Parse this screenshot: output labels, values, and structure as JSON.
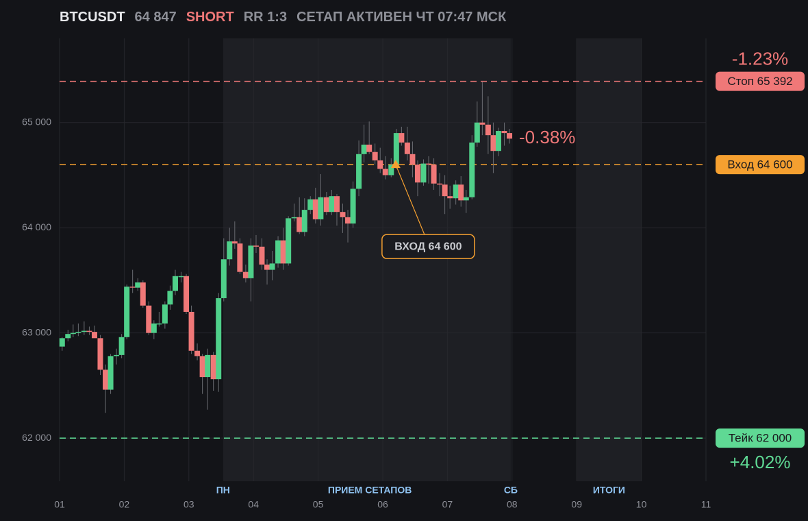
{
  "header": {
    "symbol": "BTCUSDT",
    "side": "SHORT",
    "rr": "RR 1:3",
    "status": "СЕТАП АКТИВЕН ЧТ 07:47 МСК"
  },
  "chart_data": {
    "type": "candlestick",
    "up_color": "#4fd08a",
    "down_color": "#f07878",
    "grid": true,
    "xlim": [
      1,
      11
    ],
    "xticks": [
      {
        "value": 1,
        "label": "01"
      },
      {
        "value": 2,
        "label": "02"
      },
      {
        "value": 3,
        "label": "03"
      },
      {
        "value": 4,
        "label": "04"
      },
      {
        "value": 5,
        "label": "05"
      },
      {
        "value": 6,
        "label": "06"
      },
      {
        "value": 7,
        "label": "07"
      },
      {
        "value": 8,
        "label": "08"
      },
      {
        "value": 9,
        "label": "09"
      },
      {
        "value": 10,
        "label": "10"
      },
      {
        "value": 11,
        "label": "11"
      }
    ],
    "ylim": [
      61590,
      65800
    ],
    "yticks": [
      {
        "value": 62000,
        "label": "62 000"
      },
      {
        "value": 63000,
        "label": "63 000"
      },
      {
        "value": 64000,
        "label": "64 000"
      },
      {
        "value": 65000,
        "label": "65 000"
      }
    ],
    "zones": [
      {
        "from": 3.53,
        "to": 7.98
      },
      {
        "from": 9,
        "to": 10
      }
    ],
    "zone_labels": [
      {
        "label": "ПН",
        "x": 3.53
      },
      {
        "label": "ПРИЕМ СЕТАПОВ",
        "x": 5.8
      },
      {
        "label": "СБ",
        "x": 7.98
      },
      {
        "label": "ИТОГИ",
        "x": 9.5
      }
    ],
    "x": [
      1.04,
      1.13,
      1.21,
      1.29,
      1.38,
      1.46,
      1.54,
      1.63,
      1.71,
      1.79,
      1.88,
      1.96,
      2.04,
      2.13,
      2.21,
      2.29,
      2.38,
      2.46,
      2.54,
      2.63,
      2.71,
      2.79,
      2.88,
      2.96,
      3.04,
      3.13,
      3.21,
      3.29,
      3.38,
      3.46,
      3.54,
      3.63,
      3.71,
      3.79,
      3.88,
      3.96,
      4.04,
      4.13,
      4.21,
      4.29,
      4.38,
      4.46,
      4.54,
      4.63,
      4.71,
      4.79,
      4.88,
      4.96,
      5.04,
      5.13,
      5.21,
      5.29,
      5.38,
      5.46,
      5.54,
      5.63,
      5.71,
      5.79,
      5.88,
      5.96,
      6.04,
      6.13,
      6.21,
      6.29,
      6.38,
      6.46,
      6.54,
      6.63,
      6.71,
      6.79,
      6.88,
      6.96,
      7.04,
      7.13,
      7.21,
      7.29,
      7.38,
      7.46,
      7.54,
      7.63,
      7.71,
      7.79,
      7.88,
      7.96
    ],
    "ohlc": [
      [
        62870,
        62960,
        62830,
        62950
      ],
      [
        62950,
        63030,
        62920,
        62990
      ],
      [
        62990,
        63080,
        62960,
        63000
      ],
      [
        63000,
        63090,
        62970,
        63010
      ],
      [
        63010,
        63110,
        62980,
        63020
      ],
      [
        63020,
        63060,
        62980,
        63010
      ],
      [
        63010,
        63070,
        62990,
        62950
      ],
      [
        62950,
        62980,
        62600,
        62650
      ],
      [
        62650,
        62700,
        62240,
        62460
      ],
      [
        62460,
        62800,
        62420,
        62780
      ],
      [
        62780,
        62850,
        62700,
        62790
      ],
      [
        62790,
        62990,
        62760,
        62960
      ],
      [
        62960,
        63460,
        62940,
        63440
      ],
      [
        63440,
        63600,
        63380,
        63430
      ],
      [
        63430,
        63520,
        63400,
        63480
      ],
      [
        63480,
        63500,
        63240,
        63260
      ],
      [
        63260,
        63300,
        62980,
        63000
      ],
      [
        63000,
        63120,
        62940,
        63090
      ],
      [
        63090,
        63200,
        63060,
        63090
      ],
      [
        63090,
        63300,
        63040,
        63270
      ],
      [
        63270,
        63450,
        63220,
        63400
      ],
      [
        63400,
        63600,
        63360,
        63540
      ],
      [
        63540,
        63580,
        63480,
        63540
      ],
      [
        63540,
        63560,
        63180,
        63200
      ],
      [
        63200,
        63260,
        62800,
        62830
      ],
      [
        62830,
        62900,
        62740,
        62780
      ],
      [
        62780,
        62800,
        62420,
        62580
      ],
      [
        62580,
        62850,
        62270,
        62790
      ],
      [
        62790,
        62820,
        62450,
        62560
      ],
      [
        62560,
        63380,
        62440,
        63330
      ],
      [
        63330,
        63900,
        63300,
        63700
      ],
      [
        63700,
        64000,
        63640,
        63870
      ],
      [
        63870,
        64060,
        63800,
        63850
      ],
      [
        63850,
        63900,
        63560,
        63580
      ],
      [
        63580,
        63650,
        63480,
        63520
      ],
      [
        63520,
        63900,
        63300,
        63830
      ],
      [
        63830,
        63930,
        63760,
        63820
      ],
      [
        63820,
        63900,
        63600,
        63650
      ],
      [
        63650,
        63700,
        63460,
        63600
      ],
      [
        63600,
        63780,
        63500,
        63660
      ],
      [
        63660,
        63920,
        63620,
        63880
      ],
      [
        63880,
        64000,
        63600,
        63660
      ],
      [
        63660,
        64110,
        63640,
        64090
      ],
      [
        64090,
        64230,
        64060,
        64100
      ],
      [
        64100,
        64290,
        63940,
        63960
      ],
      [
        63960,
        64280,
        63920,
        64170
      ],
      [
        64170,
        64300,
        64130,
        64270
      ],
      [
        64270,
        64380,
        64040,
        64080
      ],
      [
        64080,
        64510,
        64020,
        64290
      ],
      [
        64290,
        64340,
        64120,
        64150
      ],
      [
        64150,
        64360,
        64120,
        64300
      ],
      [
        64300,
        64320,
        64020,
        64150
      ],
      [
        64150,
        64230,
        63950,
        64100
      ],
      [
        64100,
        64170,
        63860,
        64040
      ],
      [
        64040,
        64440,
        64000,
        64370
      ],
      [
        64370,
        64830,
        64300,
        64700
      ],
      [
        64700,
        64980,
        64620,
        64790
      ],
      [
        64790,
        65010,
        64700,
        64720
      ],
      [
        64720,
        64800,
        64600,
        64640
      ],
      [
        64640,
        64760,
        64520,
        64560
      ],
      [
        64560,
        64680,
        64460,
        64500
      ],
      [
        64500,
        64660,
        64480,
        64600
      ],
      [
        64600,
        64940,
        64560,
        64900
      ],
      [
        64900,
        64960,
        64780,
        64810
      ],
      [
        64810,
        64960,
        64640,
        64700
      ],
      [
        64700,
        64820,
        64480,
        64600
      ],
      [
        64600,
        64640,
        64300,
        64430
      ],
      [
        64430,
        64650,
        64400,
        64610
      ],
      [
        64610,
        64680,
        64420,
        64600
      ],
      [
        64600,
        64660,
        64360,
        64420
      ],
      [
        64420,
        64520,
        64300,
        64410
      ],
      [
        64410,
        64500,
        64130,
        64300
      ],
      [
        64300,
        64400,
        64180,
        64280
      ],
      [
        64280,
        64450,
        64220,
        64410
      ],
      [
        64410,
        64490,
        64200,
        64260
      ],
      [
        64260,
        64360,
        64140,
        64290
      ],
      [
        64290,
        64880,
        64270,
        64810
      ],
      [
        64810,
        65200,
        64770,
        65000
      ],
      [
        65000,
        65390,
        64880,
        64980
      ],
      [
        64980,
        65250,
        64700,
        64880
      ],
      [
        64880,
        65000,
        64520,
        64730
      ],
      [
        64730,
        64950,
        64680,
        64920
      ],
      [
        64920,
        65000,
        64780,
        64900
      ],
      [
        64900,
        64940,
        64800,
        64847
      ]
    ],
    "levels": [
      {
        "price": 65392,
        "label": "Стоп 65 392",
        "color": "#f07878",
        "change": -1.23,
        "change_label": "-1.23%",
        "change_side": "above"
      },
      {
        "price": 64600,
        "label": "Вход 64 600",
        "color": "#f5a030"
      },
      {
        "price": 62000,
        "label": "Тейк 62 000",
        "color": "#5fd994",
        "change": 4.02,
        "change_label": "+4.02%",
        "change_side": "below"
      }
    ],
    "last": {
      "price": 64847,
      "label": "64 847",
      "change": -0.38,
      "change_label": "-0.38%"
    },
    "annotation": {
      "label": "ВХОД 64 600",
      "x": 6.2,
      "price": 64600,
      "color": "#f5a030"
    }
  }
}
